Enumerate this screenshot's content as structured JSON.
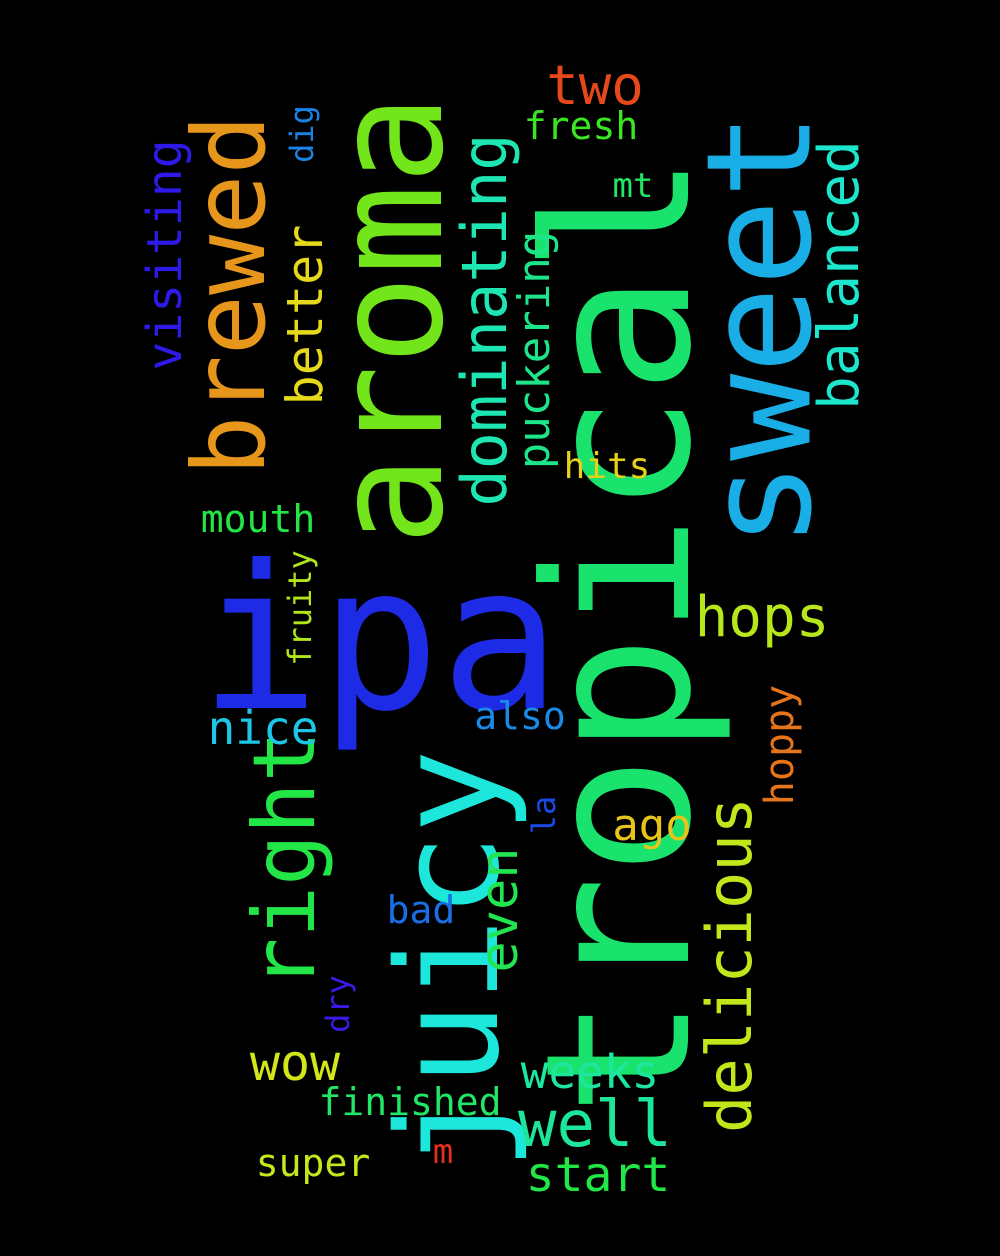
{
  "background": "#000000",
  "words": [
    {
      "text": "tropical",
      "color": "#19E36D"
    },
    {
      "text": "ipa",
      "color": "#1E2BE6"
    },
    {
      "text": "aroma",
      "color": "#72E61A"
    },
    {
      "text": "sweet",
      "color": "#1AAEE6"
    },
    {
      "text": "juicy",
      "color": "#1DE6DA"
    },
    {
      "text": "brewed",
      "color": "#E6961A"
    },
    {
      "text": "dominating",
      "color": "#1DE6B2"
    },
    {
      "text": "right",
      "color": "#22E646"
    },
    {
      "text": "delicious",
      "color": "#C1E61A"
    },
    {
      "text": "balanced",
      "color": "#1DE6CF"
    },
    {
      "text": "better",
      "color": "#E6D81A"
    },
    {
      "text": "visiting",
      "color": "#2E1AE6"
    },
    {
      "text": "puckering",
      "color": "#1DE68A"
    },
    {
      "text": "hops",
      "color": "#B7E61A"
    },
    {
      "text": "well",
      "color": "#1DE69A"
    },
    {
      "text": "even",
      "color": "#22E651"
    },
    {
      "text": "two",
      "color": "#E6481A"
    },
    {
      "text": "wow",
      "color": "#D2E61A"
    },
    {
      "text": "weeks",
      "color": "#1DE6A0"
    },
    {
      "text": "start",
      "color": "#22E646"
    },
    {
      "text": "nice",
      "color": "#1DC6E6"
    },
    {
      "text": "hoppy",
      "color": "#E6741A"
    },
    {
      "text": "mouth",
      "color": "#22E646"
    },
    {
      "text": "hits",
      "color": "#E6D01A"
    },
    {
      "text": "ago",
      "color": "#E6C41A"
    },
    {
      "text": "fresh",
      "color": "#3AE622"
    },
    {
      "text": "finished",
      "color": "#22E666"
    },
    {
      "text": "super",
      "color": "#C8E61A"
    },
    {
      "text": "also",
      "color": "#1A8AE6"
    },
    {
      "text": "bad",
      "color": "#1A6EE6"
    },
    {
      "text": "fruity",
      "color": "#B0E61A"
    },
    {
      "text": "dig",
      "color": "#1A84E6"
    },
    {
      "text": "dry",
      "color": "#3A1AE6"
    },
    {
      "text": "la",
      "color": "#1A4AE6"
    },
    {
      "text": "mt",
      "color": "#22E666"
    },
    {
      "text": "m",
      "color": "#E6301A"
    }
  ]
}
